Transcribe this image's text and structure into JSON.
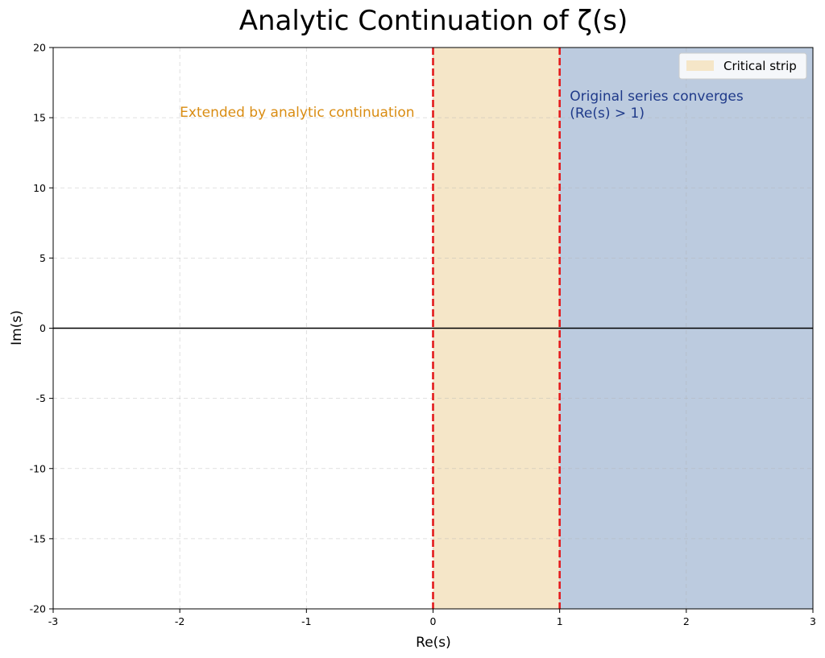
{
  "chart_data": {
    "type": "area",
    "title": "Analytic Continuation of ζ(s)",
    "xlabel": "Re(s)",
    "ylabel": "Im(s)",
    "xlim": [
      -3,
      3
    ],
    "ylim": [
      -20,
      20
    ],
    "x_ticks": [
      -3,
      -2,
      -1,
      0,
      1,
      2,
      3
    ],
    "y_ticks": [
      -20,
      -15,
      -10,
      -5,
      0,
      5,
      10,
      15,
      20
    ],
    "grid": true,
    "regions": [
      {
        "name": "Critical strip",
        "x_from": 0,
        "x_to": 1,
        "color": "#f5e6c8",
        "in_legend": true
      },
      {
        "name": "",
        "x_from": 1,
        "x_to": 3,
        "color": "#bccbdf",
        "in_legend": false
      }
    ],
    "vlines": [
      {
        "x": 0,
        "color": "#e31a1c",
        "style": "dashed"
      },
      {
        "x": 1,
        "color": "#e31a1c",
        "style": "dashed"
      }
    ],
    "hlines": [
      {
        "y": 0,
        "color": "#000000"
      }
    ],
    "annotations": [
      {
        "lines": [
          "Extended by analytic continuation"
        ],
        "x": -2,
        "y": 15,
        "color": "#d98c12"
      },
      {
        "lines": [
          "Original series converges",
          "(Re(s) > 1)"
        ],
        "x": 1.08,
        "y": 15,
        "color": "#1f3a8a"
      }
    ],
    "legend_position": "top-right"
  }
}
